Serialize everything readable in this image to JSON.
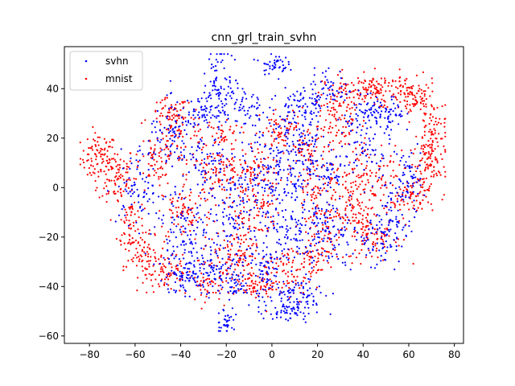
{
  "chart_data": {
    "type": "scatter",
    "title": "cnn_grl_train_svhn",
    "xlabel": "",
    "ylabel": "",
    "xlim": [
      -91,
      84
    ],
    "ylim": [
      -63,
      57
    ],
    "xticks": [
      -80,
      -60,
      -40,
      -20,
      0,
      20,
      40,
      60,
      80
    ],
    "yticks": [
      -60,
      -40,
      -20,
      0,
      20,
      40
    ],
    "grid": false,
    "legend_position": "upper-left",
    "series": [
      {
        "name": "svhn",
        "color": "#0000ff",
        "clusters": [
          {
            "cx": -22,
            "cy": 40,
            "sx": 4,
            "sy": 8,
            "n": 110
          },
          {
            "cx": -31,
            "cy": 31,
            "sx": 3,
            "sy": 3,
            "n": 40
          },
          {
            "cx": 1,
            "cy": 50,
            "sx": 3,
            "sy": 2,
            "n": 45
          },
          {
            "cx": 12,
            "cy": 33,
            "sx": 5,
            "sy": 5,
            "n": 60
          },
          {
            "cx": 26,
            "cy": 40,
            "sx": 5,
            "sy": 4,
            "n": 55
          },
          {
            "cx": 50,
            "cy": 29,
            "sx": 4,
            "sy": 4,
            "n": 70
          },
          {
            "cx": 40,
            "cy": 30,
            "sx": 4,
            "sy": 3,
            "n": 40
          },
          {
            "cx": -42,
            "cy": 20,
            "sx": 6,
            "sy": 7,
            "n": 90
          },
          {
            "cx": -10,
            "cy": 30,
            "sx": 4,
            "sy": 6,
            "n": 45
          },
          {
            "cx": 10,
            "cy": 20,
            "sx": 8,
            "sy": 8,
            "n": 120
          },
          {
            "cx": -58,
            "cy": 0,
            "sx": 5,
            "sy": 8,
            "n": 80
          },
          {
            "cx": -28,
            "cy": 10,
            "sx": 6,
            "sy": 6,
            "n": 60
          },
          {
            "cx": 0,
            "cy": 5,
            "sx": 8,
            "sy": 9,
            "n": 130
          },
          {
            "cx": 22,
            "cy": 5,
            "sx": 6,
            "sy": 6,
            "n": 70
          },
          {
            "cx": 42,
            "cy": 15,
            "sx": 5,
            "sy": 6,
            "n": 55
          },
          {
            "cx": 60,
            "cy": 5,
            "sx": 3,
            "sy": 7,
            "n": 40
          },
          {
            "cx": 55,
            "cy": -5,
            "sx": 4,
            "sy": 5,
            "n": 50
          },
          {
            "cx": -35,
            "cy": -20,
            "sx": 8,
            "sy": 10,
            "n": 160
          },
          {
            "cx": -15,
            "cy": -10,
            "sx": 5,
            "sy": 8,
            "n": 90
          },
          {
            "cx": 10,
            "cy": -15,
            "sx": 7,
            "sy": 8,
            "n": 110
          },
          {
            "cx": 25,
            "cy": -18,
            "sx": 6,
            "sy": 7,
            "n": 90
          },
          {
            "cx": 48,
            "cy": -20,
            "sx": 6,
            "sy": 6,
            "n": 90
          },
          {
            "cx": -40,
            "cy": -37,
            "sx": 5,
            "sy": 3,
            "n": 60
          },
          {
            "cx": -25,
            "cy": -35,
            "sx": 6,
            "sy": 4,
            "n": 70
          },
          {
            "cx": -2,
            "cy": -33,
            "sx": 5,
            "sy": 6,
            "n": 80
          },
          {
            "cx": 12,
            "cy": -44,
            "sx": 7,
            "sy": 4,
            "n": 90
          },
          {
            "cx": 5,
            "cy": -50,
            "sx": 5,
            "sy": 2,
            "n": 40
          },
          {
            "cx": -20,
            "cy": -54,
            "sx": 2,
            "sy": 3,
            "n": 35
          },
          {
            "cx": -15,
            "cy": -40,
            "sx": 4,
            "sy": 2,
            "n": 30
          }
        ]
      },
      {
        "name": "mnist",
        "color": "#ff0000",
        "clusters": [
          {
            "cx": -76,
            "cy": 12,
            "sx": 4,
            "sy": 5,
            "n": 90
          },
          {
            "cx": -68,
            "cy": 5,
            "sx": 4,
            "sy": 6,
            "n": 80
          },
          {
            "cx": -62,
            "cy": -15,
            "sx": 3,
            "sy": 8,
            "n": 80
          },
          {
            "cx": -55,
            "cy": -28,
            "sx": 4,
            "sy": 4,
            "n": 60
          },
          {
            "cx": -45,
            "cy": -35,
            "sx": 5,
            "sy": 4,
            "n": 70
          },
          {
            "cx": -45,
            "cy": 30,
            "sx": 4,
            "sy": 3,
            "n": 50
          },
          {
            "cx": -40,
            "cy": 20,
            "sx": 6,
            "sy": 6,
            "n": 80
          },
          {
            "cx": -25,
            "cy": 5,
            "sx": 6,
            "sy": 5,
            "n": 90
          },
          {
            "cx": -38,
            "cy": -10,
            "sx": 6,
            "sy": 6,
            "n": 80
          },
          {
            "cx": -22,
            "cy": 22,
            "sx": 4,
            "sy": 3,
            "n": 40
          },
          {
            "cx": -14,
            "cy": -20,
            "sx": 4,
            "sy": 8,
            "n": 70
          },
          {
            "cx": -5,
            "cy": -5,
            "sx": 4,
            "sy": 8,
            "n": 80
          },
          {
            "cx": 5,
            "cy": 22,
            "sx": 5,
            "sy": 5,
            "n": 70
          },
          {
            "cx": 15,
            "cy": 15,
            "sx": 5,
            "sy": 5,
            "n": 60
          },
          {
            "cx": 30,
            "cy": 25,
            "sx": 6,
            "sy": 6,
            "n": 80
          },
          {
            "cx": 32,
            "cy": 38,
            "sx": 5,
            "sy": 4,
            "n": 70
          },
          {
            "cx": 48,
            "cy": 40,
            "sx": 7,
            "sy": 3,
            "n": 110
          },
          {
            "cx": 62,
            "cy": 35,
            "sx": 5,
            "sy": 4,
            "n": 80
          },
          {
            "cx": 70,
            "cy": 22,
            "sx": 3,
            "sy": 7,
            "n": 90
          },
          {
            "cx": 68,
            "cy": 8,
            "sx": 4,
            "sy": 6,
            "n": 80
          },
          {
            "cx": 62,
            "cy": -5,
            "sx": 3,
            "sy": 4,
            "n": 40
          },
          {
            "cx": 38,
            "cy": 5,
            "sx": 5,
            "sy": 6,
            "n": 70
          },
          {
            "cx": 52,
            "cy": 0,
            "sx": 5,
            "sy": 8,
            "n": 80
          },
          {
            "cx": 35,
            "cy": -10,
            "sx": 5,
            "sy": 6,
            "n": 70
          },
          {
            "cx": 45,
            "cy": -20,
            "sx": 6,
            "sy": 5,
            "n": 80
          },
          {
            "cx": 20,
            "cy": 0,
            "sx": 5,
            "sy": 6,
            "n": 60
          },
          {
            "cx": 18,
            "cy": -28,
            "sx": 5,
            "sy": 4,
            "n": 60
          },
          {
            "cx": 5,
            "cy": -35,
            "sx": 7,
            "sy": 5,
            "n": 90
          },
          {
            "cx": -8,
            "cy": -40,
            "sx": 4,
            "sy": 2,
            "n": 50
          },
          {
            "cx": -20,
            "cy": -30,
            "sx": 6,
            "sy": 5,
            "n": 70
          },
          {
            "cx": -30,
            "cy": -40,
            "sx": 4,
            "sy": 3,
            "n": 40
          },
          {
            "cx": 22,
            "cy": -15,
            "sx": 5,
            "sy": 5,
            "n": 50
          },
          {
            "cx": -52,
            "cy": 10,
            "sx": 4,
            "sy": 5,
            "n": 50
          },
          {
            "cx": -10,
            "cy": 10,
            "sx": 5,
            "sy": 5,
            "n": 60
          }
        ]
      }
    ]
  }
}
